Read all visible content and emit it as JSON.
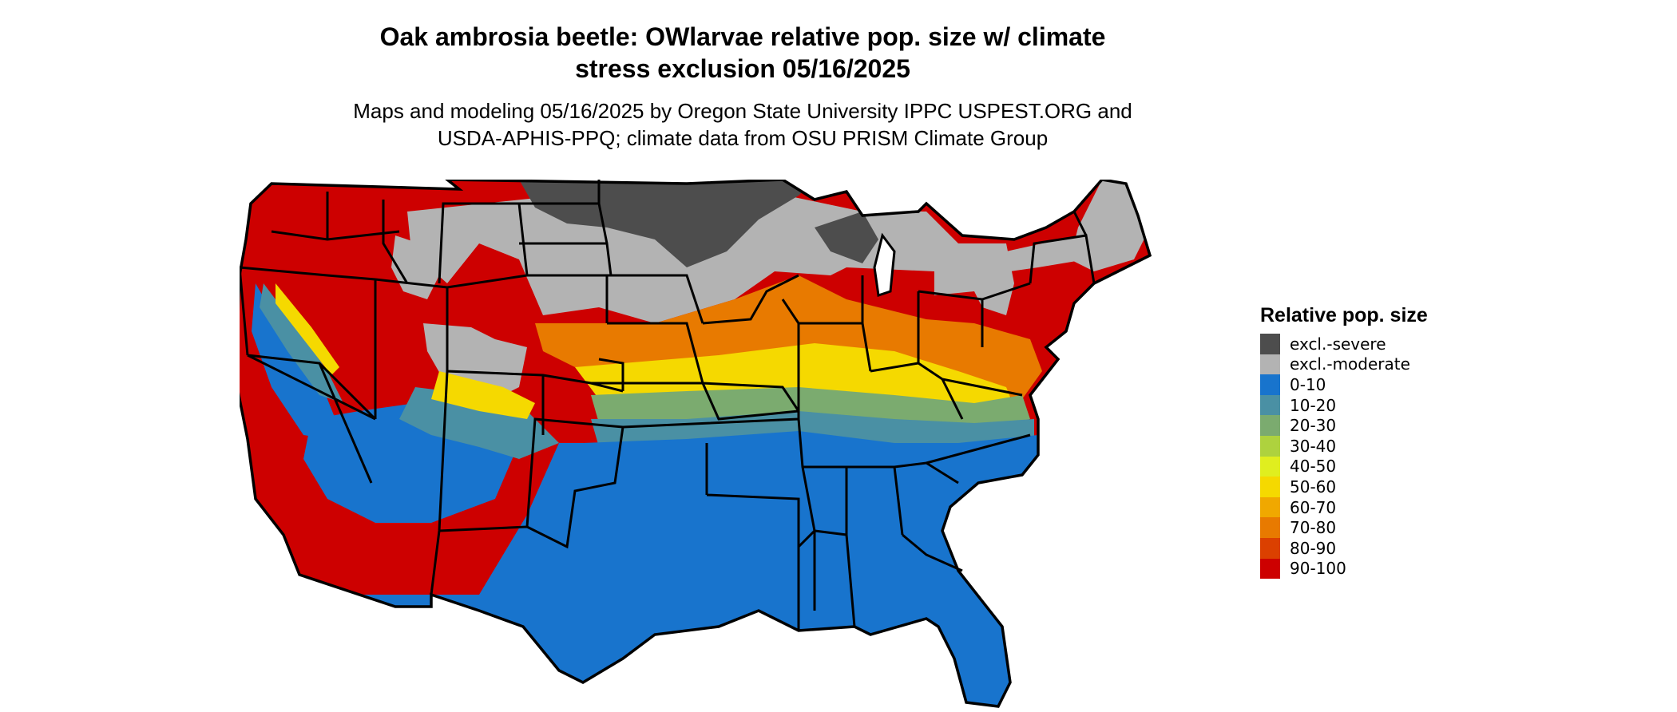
{
  "title": {
    "line1": "Oak ambrosia beetle: OWlarvae relative pop. size w/ climate",
    "line2": "stress exclusion 05/16/2025"
  },
  "subtitle": {
    "line1": "Maps and modeling 05/16/2025 by Oregon State University IPPC USPEST.ORG and",
    "line2": "USDA-APHIS-PPQ; climate data from OSU PRISM Climate Group"
  },
  "legend": {
    "title": "Relative pop. size",
    "items": [
      {
        "label": "excl.-severe",
        "color": "#4d4d4d"
      },
      {
        "label": "excl.-moderate",
        "color": "#b3b3b3"
      },
      {
        "label": "0-10",
        "color": "#1874cd"
      },
      {
        "label": "10-20",
        "color": "#4a90a4"
      },
      {
        "label": "20-30",
        "color": "#7bab6f"
      },
      {
        "label": "30-40",
        "color": "#aed23e"
      },
      {
        "label": "40-50",
        "color": "#e0ee1f"
      },
      {
        "label": "50-60",
        "color": "#f5d900"
      },
      {
        "label": "60-70",
        "color": "#f0a800"
      },
      {
        "label": "70-80",
        "color": "#e87a00"
      },
      {
        "label": "80-90",
        "color": "#db4000"
      },
      {
        "label": "90-100",
        "color": "#cd0000"
      }
    ]
  },
  "map": {
    "region": "conterminous United States",
    "zones": [
      {
        "name": "west-coast-interior",
        "class": "90-100"
      },
      {
        "name": "northern-plains",
        "class": "excl.-moderate"
      },
      {
        "name": "dakotas-minnesota-north",
        "class": "excl.-severe"
      },
      {
        "name": "rockies-high-elevation",
        "class": "excl.-moderate"
      },
      {
        "name": "great-lakes-northeast",
        "class": "90-100"
      },
      {
        "name": "new-england-north",
        "class": "excl.-moderate"
      },
      {
        "name": "central-plains-band",
        "class": "70-80"
      },
      {
        "name": "midwest-band",
        "class": "50-60"
      },
      {
        "name": "ohio-valley-band",
        "class": "20-30"
      },
      {
        "name": "tennessee-band",
        "class": "10-20"
      },
      {
        "name": "south-gulf",
        "class": "0-10"
      },
      {
        "name": "desert-southwest",
        "class": "0-10"
      },
      {
        "name": "california-coast",
        "class": "0-10"
      }
    ]
  }
}
